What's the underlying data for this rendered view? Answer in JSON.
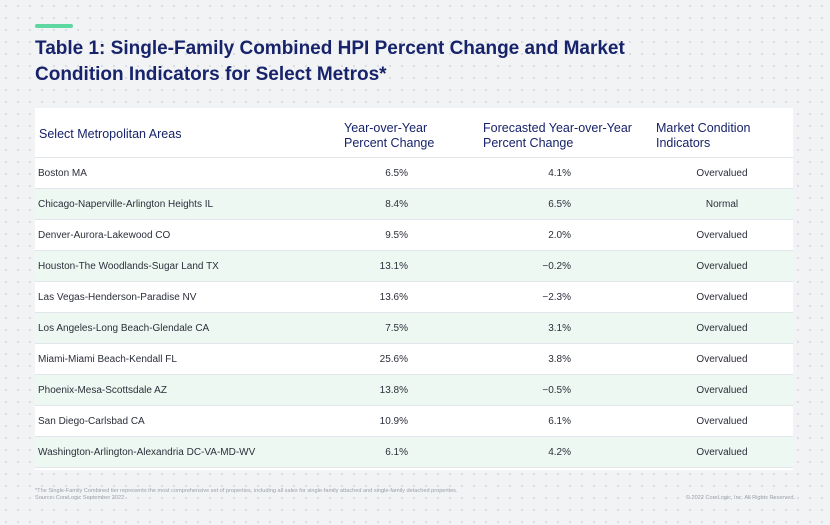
{
  "title": "Table 1: Single-Family Combined HPI Percent Change and Market Condition Indicators for Select Metros*",
  "colors": {
    "accent": "#5ed8a0",
    "title": "#17236a",
    "row_alt": "#eef8f2"
  },
  "table": {
    "headers": {
      "area": "Select Metropolitan Areas",
      "yoy": "Year-over-Year Percent Change",
      "forecast": "Forecasted Year-over-Year Percent Change",
      "market": "Market Condition Indicators"
    },
    "rows": [
      {
        "area": "Boston MA",
        "yoy": "6.5%",
        "forecast": "4.1%",
        "market": "Overvalued"
      },
      {
        "area": "Chicago-Naperville-Arlington Heights IL",
        "yoy": "8.4%",
        "forecast": "6.5%",
        "market": "Normal"
      },
      {
        "area": "Denver-Aurora-Lakewood CO",
        "yoy": "9.5%",
        "forecast": "2.0%",
        "market": "Overvalued"
      },
      {
        "area": "Houston-The Woodlands-Sugar Land TX",
        "yoy": "13.1%",
        "forecast": "−0.2%",
        "market": "Overvalued"
      },
      {
        "area": "Las Vegas-Henderson-Paradise NV",
        "yoy": "13.6%",
        "forecast": "−2.3%",
        "market": "Overvalued"
      },
      {
        "area": "Los Angeles-Long Beach-Glendale CA",
        "yoy": "7.5%",
        "forecast": "3.1%",
        "market": "Overvalued"
      },
      {
        "area": "Miami-Miami Beach-Kendall FL",
        "yoy": "25.6%",
        "forecast": "3.8%",
        "market": "Overvalued"
      },
      {
        "area": "Phoenix-Mesa-Scottsdale AZ",
        "yoy": "13.8%",
        "forecast": "−0.5%",
        "market": "Overvalued"
      },
      {
        "area": "San Diego-Carlsbad CA",
        "yoy": "10.9%",
        "forecast": "6.1%",
        "market": "Overvalued"
      },
      {
        "area": "Washington-Arlington-Alexandria DC-VA-MD-WV",
        "yoy": "6.1%",
        "forecast": "4.2%",
        "market": "Overvalued"
      }
    ]
  },
  "footnote": {
    "line1": "*The Single-Family Combined tier represents the most comprehensive set of properties, including all sales for single-family attached and single-family detached properties.",
    "line2": "Source: CoreLogic September 2022"
  },
  "copyright": "© 2022 CoreLogic, Inc. All Rights Reserved."
}
